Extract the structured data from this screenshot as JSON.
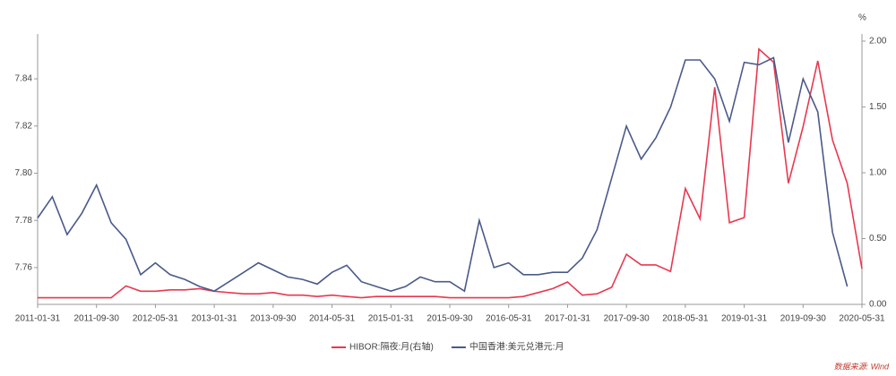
{
  "chart_data": {
    "type": "line",
    "y2label": "%",
    "source": "数据来源: Wind",
    "legend": "bottom",
    "categories": [
      "2011-01-31",
      null,
      null,
      null,
      "2011-09-30",
      null,
      null,
      null,
      "2012-05-31",
      null,
      null,
      null,
      "2013-01-31",
      null,
      null,
      null,
      "2013-09-30",
      null,
      null,
      null,
      "2014-05-31",
      null,
      null,
      null,
      "2015-01-31",
      null,
      null,
      null,
      "2015-09-30",
      null,
      null,
      null,
      "2016-05-31",
      null,
      null,
      null,
      "2017-01-31",
      null,
      null,
      null,
      "2017-09-30",
      null,
      null,
      null,
      "2018-05-31",
      null,
      null,
      null,
      "2019-01-31",
      null,
      null,
      null,
      "2019-09-30",
      null,
      null,
      null,
      "2020-05-31"
    ],
    "series": [
      {
        "name": "HIBOR:隔夜:月(右轴)",
        "color": "#e8384f",
        "axis": "y2",
        "values": [
          0.05,
          0.05,
          0.05,
          0.05,
          0.05,
          0.05,
          0.14,
          0.1,
          0.1,
          0.11,
          0.11,
          0.12,
          0.1,
          0.09,
          0.08,
          0.08,
          0.09,
          0.07,
          0.07,
          0.06,
          0.07,
          0.06,
          0.05,
          0.06,
          0.06,
          0.06,
          0.06,
          0.06,
          0.05,
          0.05,
          0.05,
          0.05,
          0.05,
          0.06,
          0.09,
          0.12,
          0.17,
          0.07,
          0.08,
          0.13,
          0.38,
          0.3,
          0.3,
          0.25,
          0.88,
          0.65,
          1.65,
          0.62,
          0.66,
          1.94,
          1.84,
          0.92,
          1.35,
          1.85,
          1.25,
          0.92,
          0.27
        ]
      },
      {
        "name": "中国香港:美元兑港元:月",
        "color": "#4a5a8a",
        "values": [
          7.781,
          7.79,
          7.774,
          7.783,
          7.795,
          7.779,
          7.772,
          7.757,
          7.762,
          7.757,
          7.755,
          7.752,
          7.75,
          7.754,
          7.758,
          7.762,
          7.759,
          7.756,
          7.755,
          7.753,
          7.758,
          7.761,
          7.754,
          7.752,
          7.75,
          7.752,
          7.756,
          7.754,
          7.754,
          7.75,
          7.78,
          7.76,
          7.762,
          7.757,
          7.757,
          7.758,
          7.758,
          7.764,
          7.776,
          7.798,
          7.82,
          7.806,
          7.815,
          7.828,
          7.848,
          7.848,
          7.84,
          7.822,
          7.847,
          7.846,
          7.849,
          7.813,
          7.84,
          7.826,
          7.775,
          7.752,
          null
        ]
      }
    ],
    "ylim": [
      7.7444,
      7.859
    ],
    "yticks": [
      7.76,
      7.78,
      {
        "value": 7.8,
        "label": "7.80"
      },
      7.82,
      7.84
    ],
    "y2lim": [
      0,
      2.054
    ],
    "y2ticks": [
      {
        "value": 0,
        "label": "0.00"
      },
      {
        "value": 0.5,
        "label": "0.50"
      },
      {
        "value": 1,
        "label": "1.00"
      },
      {
        "value": 1.5,
        "label": "1.50"
      },
      {
        "value": 2,
        "label": "2.00"
      }
    ],
    "grid": false
  }
}
